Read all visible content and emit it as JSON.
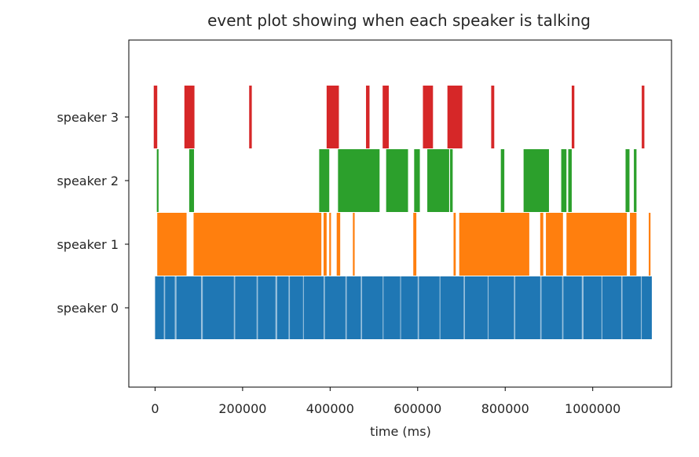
{
  "chart_data": {
    "type": "eventplot",
    "title": "event plot showing when each speaker is talking",
    "xlabel": "time (ms)",
    "ylabel": "",
    "xlim": [
      -60000,
      1180000
    ],
    "xticks": [
      0,
      200000,
      400000,
      600000,
      800000,
      1000000
    ],
    "xtick_labels": [
      "0",
      "200000",
      "400000",
      "600000",
      "800000",
      "1000000"
    ],
    "yticks": [
      0,
      1,
      2,
      3
    ],
    "ytick_labels": [
      "speaker 0",
      "speaker 1",
      "speaker 2",
      "speaker 3"
    ],
    "grid": false,
    "legend": "none",
    "colors": [
      "#1f77b4",
      "#ff7f0e",
      "#2ca02c",
      "#d62728"
    ],
    "series": [
      {
        "row": 0,
        "label": "speaker 0",
        "intervals": [
          [
            0,
            1135000
          ]
        ],
        "gaps": [
          [
            20000,
            23000
          ],
          [
            45000,
            49000
          ],
          [
            105000,
            109000
          ],
          [
            180000,
            183000
          ],
          [
            232000,
            235000
          ],
          [
            275000,
            279000
          ],
          [
            305000,
            308000
          ],
          [
            338000,
            340000
          ],
          [
            385000,
            388000
          ],
          [
            435000,
            438000
          ],
          [
            470000,
            473000
          ],
          [
            520000,
            522000
          ],
          [
            560000,
            562000
          ],
          [
            600000,
            603000
          ],
          [
            650000,
            652000
          ],
          [
            705000,
            708000
          ],
          [
            760000,
            762000
          ],
          [
            820000,
            823000
          ],
          [
            880000,
            883000
          ],
          [
            930000,
            933000
          ],
          [
            975000,
            979000
          ],
          [
            1020000,
            1022000
          ],
          [
            1065000,
            1068000
          ],
          [
            1110000,
            1112000
          ]
        ]
      },
      {
        "row": 1,
        "label": "speaker 1",
        "intervals": [
          [
            5000,
            72000
          ],
          [
            88000,
            380000
          ],
          [
            385000,
            392000
          ],
          [
            398000,
            402000
          ],
          [
            415000,
            423000
          ],
          [
            452000,
            456000
          ],
          [
            590000,
            597000
          ],
          [
            682000,
            687000
          ],
          [
            695000,
            855000
          ],
          [
            880000,
            887000
          ],
          [
            893000,
            932000
          ],
          [
            940000,
            1078000
          ],
          [
            1085000,
            1100000
          ],
          [
            1128000,
            1132000
          ]
        ]
      },
      {
        "row": 2,
        "label": "speaker 2",
        "intervals": [
          [
            4000,
            8000
          ],
          [
            78000,
            89000
          ],
          [
            375000,
            398000
          ],
          [
            418000,
            513000
          ],
          [
            528000,
            578000
          ],
          [
            592000,
            605000
          ],
          [
            622000,
            672000
          ],
          [
            674000,
            680000
          ],
          [
            790000,
            798000
          ],
          [
            842000,
            900000
          ],
          [
            928000,
            940000
          ],
          [
            944000,
            952000
          ],
          [
            1075000,
            1084000
          ],
          [
            1094000,
            1100000
          ]
        ]
      },
      {
        "row": 3,
        "label": "speaker 3",
        "intervals": [
          [
            -3000,
            5000
          ],
          [
            67000,
            90000
          ],
          [
            215000,
            221000
          ],
          [
            392000,
            420000
          ],
          [
            482000,
            490000
          ],
          [
            520000,
            534000
          ],
          [
            612000,
            635000
          ],
          [
            668000,
            702000
          ],
          [
            768000,
            775000
          ],
          [
            952000,
            958000
          ],
          [
            1112000,
            1118000
          ]
        ]
      }
    ]
  }
}
